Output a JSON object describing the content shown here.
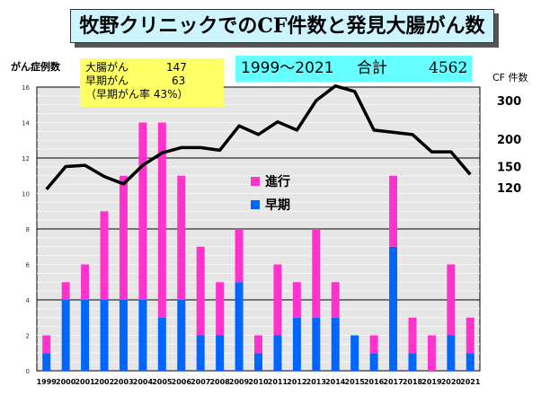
{
  "title": "牧野クリニックでのCF件数と発見大腸がん数",
  "summary": {
    "rows": [
      {
        "label": "大腸がん",
        "value": "147"
      },
      {
        "label": "早期がん",
        "value": "63"
      }
    ],
    "ratio": "（早期がん率  43%）"
  },
  "total_box": {
    "years": "1999～2021",
    "label": "合計",
    "value": "4562"
  },
  "colors": {
    "advanced": "#ff33cc",
    "early": "#0066ff",
    "line": "#000000",
    "plot_bg": "#e6e6e6"
  },
  "chart_data": {
    "type": "bar",
    "stacked": true,
    "ylabel": "がん症例数",
    "ylabel_right": "CF 件数",
    "ylim": [
      0,
      16
    ],
    "yticks": [
      0,
      2,
      4,
      6,
      8,
      10,
      12,
      14,
      16
    ],
    "right_yticks": [
      120,
      150,
      200,
      300
    ],
    "right_scale": "log",
    "grid": true,
    "legend_position": "center",
    "categories": [
      "1999",
      "2000",
      "2001",
      "2002",
      "2003",
      "2004",
      "2005",
      "2006",
      "2007",
      "2008",
      "2009",
      "2010",
      "2011",
      "2012",
      "2013",
      "2014",
      "2015",
      "2016",
      "2017",
      "2018",
      "2019",
      "2020",
      "2021"
    ],
    "series": [
      {
        "name": "早期",
        "values": [
          1,
          4,
          4,
          4,
          4,
          4,
          3,
          4,
          2,
          2,
          5,
          1,
          2,
          3,
          3,
          3,
          2,
          1,
          7,
          1,
          0,
          2,
          1
        ]
      },
      {
        "name": "進行",
        "values": [
          1,
          1,
          2,
          5,
          7,
          10,
          11,
          7,
          5,
          3,
          3,
          1,
          4,
          2,
          5,
          2,
          0,
          1,
          4,
          2,
          2,
          4,
          2
        ]
      },
      {
        "name": "CF件数",
        "type": "line",
        "axis": "right",
        "values": [
          118,
          150,
          152,
          135,
          125,
          152,
          173,
          183,
          183,
          178,
          230,
          210,
          240,
          220,
          300,
          350,
          330,
          220,
          215,
          210,
          175,
          175,
          138
        ]
      }
    ]
  }
}
